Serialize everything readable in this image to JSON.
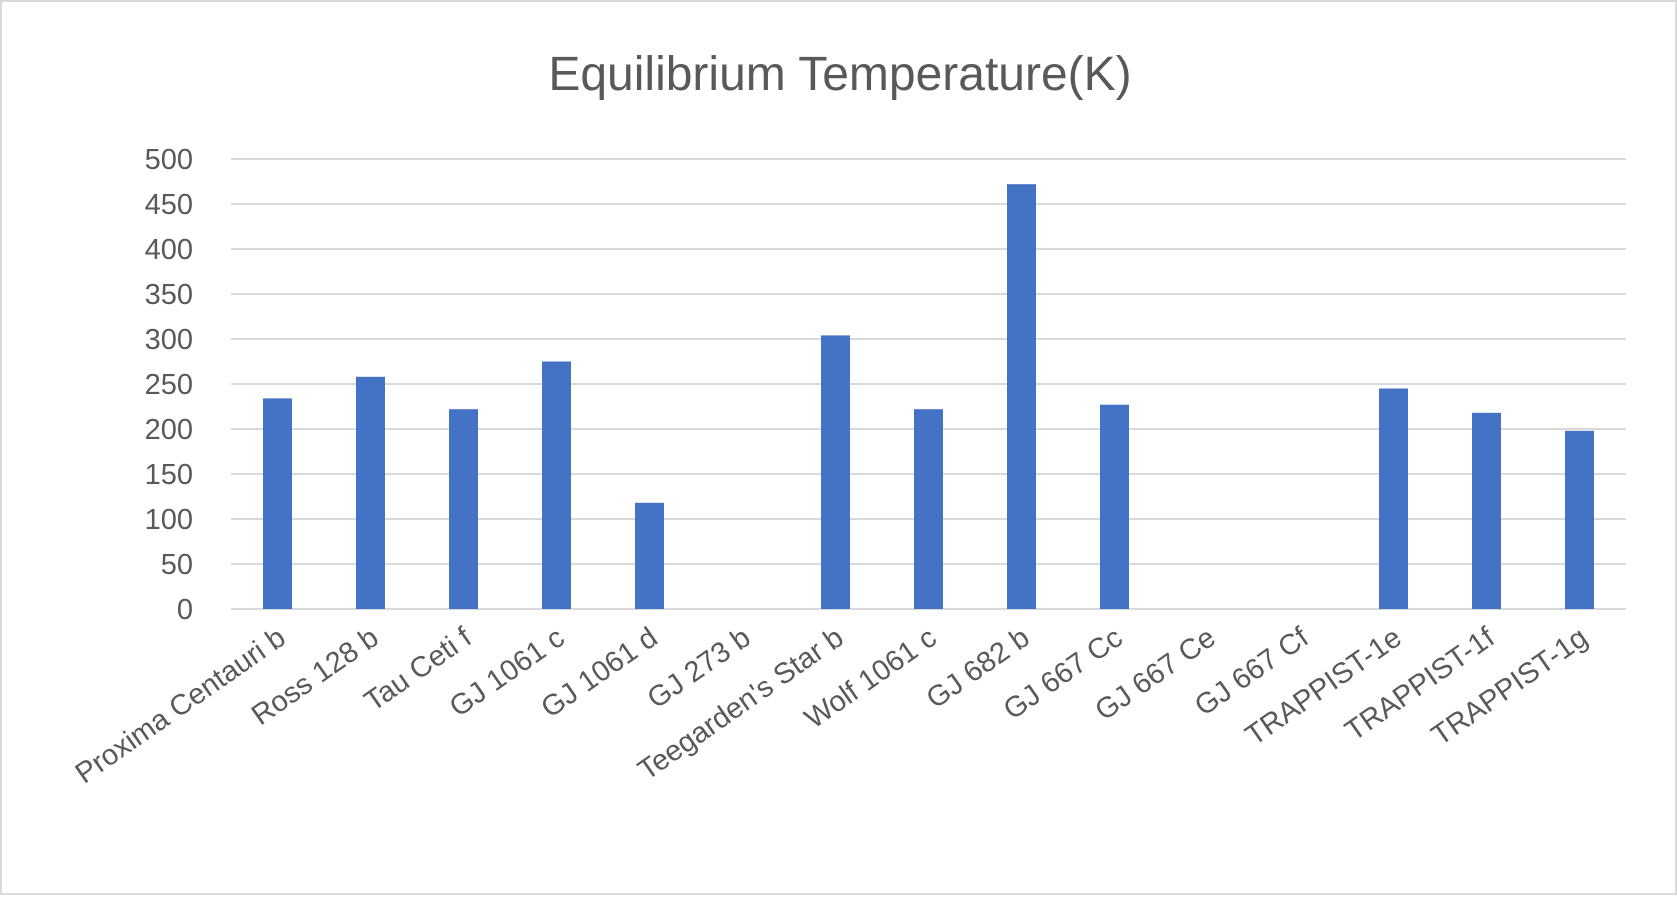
{
  "chart_data": {
    "type": "bar",
    "title": "Equilibrium Temperature(K)",
    "xlabel": "",
    "ylabel": "",
    "ylim": [
      0,
      500
    ],
    "yticks": [
      0,
      50,
      100,
      150,
      200,
      250,
      300,
      350,
      400,
      450,
      500
    ],
    "grid": true,
    "legend": "none",
    "bar_color": "#4472c4",
    "categories": [
      "Proxima Centauri b",
      "Ross 128 b",
      "Tau Ceti f",
      "GJ 1061 c",
      "GJ 1061 d",
      "GJ 273 b",
      "Teegarden's Star b",
      "Wolf 1061 c",
      "GJ 682 b",
      "GJ 667 Cc",
      "GJ 667 Ce",
      "GJ 667 Cf",
      "TRAPPIST-1e",
      "TRAPPIST-1f",
      "TRAPPIST-1g"
    ],
    "values": [
      234,
      258,
      222,
      275,
      118,
      null,
      304,
      222,
      472,
      227,
      null,
      null,
      245,
      218,
      198
    ]
  }
}
